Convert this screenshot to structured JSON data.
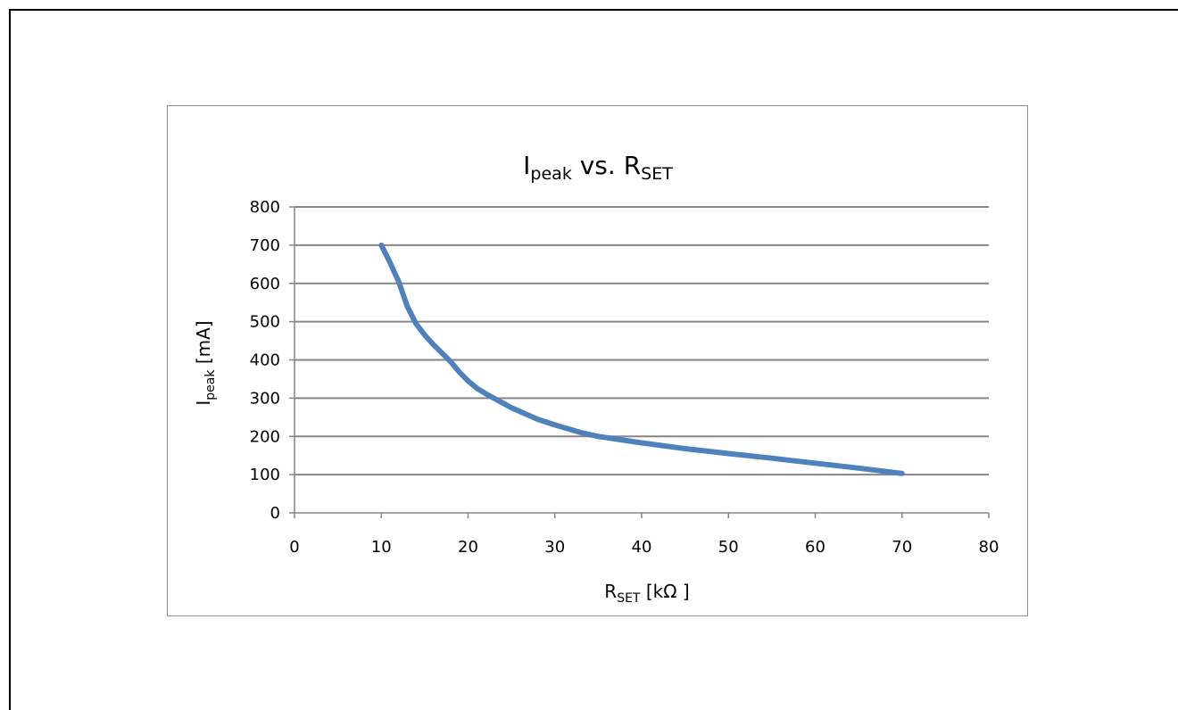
{
  "chart_data": {
    "type": "line",
    "title": {
      "main": "I",
      "main_sub": "peak",
      "rest": " vs. R",
      "rest_sub": "SET"
    },
    "xlabel": {
      "main": "R",
      "sub": "SET",
      "rest": " [kΩ ]"
    },
    "ylabel": {
      "main": "I",
      "sub": "peak",
      "rest": " [mA]"
    },
    "xlim": [
      0,
      80
    ],
    "ylim": [
      0,
      800
    ],
    "x_ticks": [
      0,
      10,
      20,
      30,
      40,
      50,
      60,
      70,
      80
    ],
    "y_ticks": [
      0,
      100,
      200,
      300,
      400,
      500,
      600,
      700,
      800
    ],
    "grid": "horizontal",
    "line_color": "#4f81bd",
    "series": [
      {
        "x": [
          10,
          11,
          12,
          13,
          14,
          15,
          16,
          17,
          18,
          19,
          20,
          21,
          22,
          25,
          28,
          30,
          33,
          35,
          40,
          45,
          50,
          55,
          60,
          65,
          70
        ],
        "y": [
          700,
          655,
          605,
          540,
          495,
          465,
          440,
          418,
          395,
          368,
          345,
          326,
          312,
          275,
          245,
          230,
          210,
          200,
          183,
          168,
          155,
          143,
          130,
          117,
          103
        ]
      }
    ]
  }
}
